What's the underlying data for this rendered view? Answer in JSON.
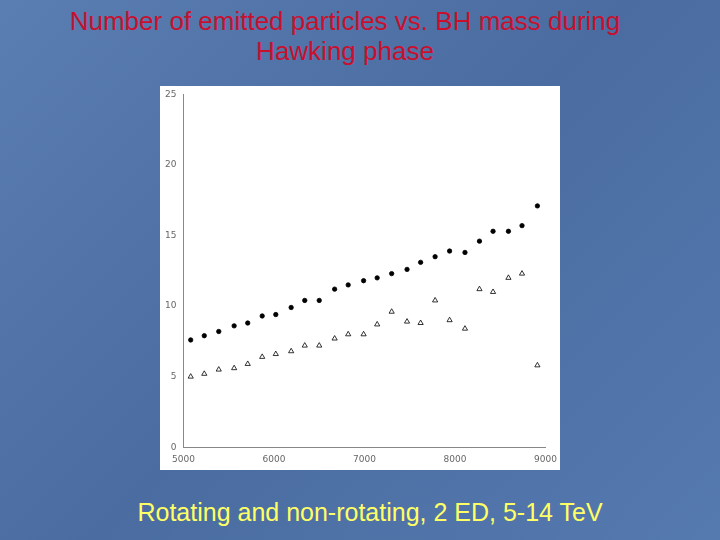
{
  "chart_data": {
    "type": "scatter",
    "title": "Number of emitted particles vs. BH mass during Hawking phase",
    "annotations": [
      "Rotating and non-rotating, 2 ED, 5-14 TeV"
    ],
    "x": [
      5080,
      5230,
      5390,
      5560,
      5710,
      5870,
      6020,
      6190,
      6340,
      6500,
      6670,
      6820,
      6990,
      7140,
      7300,
      7470,
      7620,
      7780,
      7940,
      8110,
      8270,
      8420,
      8590,
      8740,
      8910
    ],
    "series": [
      {
        "color": "#000000",
        "marker": "circle",
        "values": [
          7.6,
          7.9,
          8.2,
          8.6,
          8.8,
          9.3,
          9.4,
          9.9,
          10.4,
          10.4,
          11.2,
          11.5,
          11.8,
          12.0,
          12.3,
          12.6,
          13.1,
          13.5,
          13.9,
          13.8,
          14.6,
          15.3,
          15.3,
          15.7,
          17.1
        ]
      },
      {
        "color": "#000000",
        "marker": "triangle_open",
        "values": [
          5.0,
          5.2,
          5.5,
          5.6,
          5.9,
          6.4,
          6.6,
          6.8,
          7.2,
          7.2,
          7.7,
          8.0,
          8.0,
          8.7,
          9.6,
          8.9,
          8.8,
          10.4,
          9.0,
          8.4,
          11.2,
          11.0,
          12.0,
          12.3,
          5.8
        ]
      }
    ],
    "xlim": [
      5000,
      9000
    ],
    "xticks": [
      5000,
      6000,
      7000,
      8000,
      9000
    ],
    "ylim": [
      0,
      25
    ],
    "yticks": [
      0,
      5,
      10,
      15,
      20,
      25
    ],
    "grid": false
  }
}
